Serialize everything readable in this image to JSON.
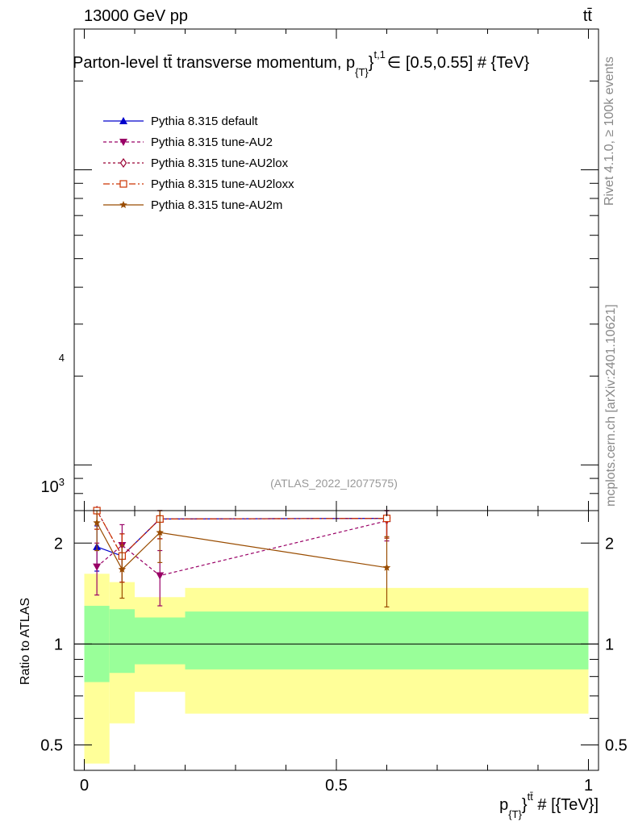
{
  "header": {
    "energy_label": "13000 GeV pp",
    "process_label": "tt̄"
  },
  "side_labels": {
    "rivet": "Rivet 4.1.0, ≥ 100k events",
    "mcplots": "mcplots.cern.ch [arXiv:2401.10621]"
  },
  "chart_data": {
    "type": "line",
    "title": "Parton-level tt̄ transverse momentum, p_{T}^{t,1} ∈ [0.5,0.55] # {TeV}",
    "title_parts": {
      "main": "Parton-level tt̄ transverse momentum, p",
      "sub": "{T}",
      "sup": "}",
      "sup2": "t,1",
      "tail": "∈ [0.5,0.55] # {TeV}"
    },
    "analysis_label": "(ATLAS_2022_I2077575)",
    "main_panel": {
      "yscale": "log",
      "ylim": [
        700,
        30000
      ],
      "ytick_labels": [
        "4",
        "10³"
      ]
    },
    "ratio_panel": {
      "ylabel": "Ratio to ATLAS",
      "yscale": "log",
      "ylim": [
        0.42,
        2.5
      ],
      "yticks": [
        0.5,
        1,
        2
      ],
      "ytick_labels": [
        "0.5",
        "1",
        "2"
      ]
    },
    "xaxis": {
      "xlim": [
        -0.02,
        1.02
      ],
      "xticks": [
        0,
        0.5,
        1
      ],
      "xtick_labels": [
        "0",
        "0.5",
        "1"
      ],
      "xlabel": {
        "main": "p",
        "sub": "{T}",
        "sup": "}",
        "sup2": "tt̄",
        "tail": " # [{TeV}]"
      }
    },
    "bins": [
      [
        0,
        0.05
      ],
      [
        0.05,
        0.1
      ],
      [
        0.1,
        0.2
      ],
      [
        0.2,
        1.0
      ]
    ],
    "reference_bands": {
      "inner": [
        [
          0.77,
          1.3
        ],
        [
          0.82,
          1.27
        ],
        [
          0.87,
          1.2
        ],
        [
          0.84,
          1.25
        ]
      ],
      "outer": [
        [
          0.44,
          1.62
        ],
        [
          0.58,
          1.53
        ],
        [
          0.72,
          1.38
        ],
        [
          0.62,
          1.47
        ]
      ],
      "inner_color": "#99ff99",
      "outer_color": "#ffff99"
    },
    "series": [
      {
        "name": "Pythia 8.315 default",
        "color": "#0000cc",
        "marker": "triangle-up",
        "dash": "",
        "x": [
          0.025,
          0.075,
          0.15,
          0.6
        ],
        "y": [
          1.95,
          1.83,
          2.36,
          2.37
        ],
        "yerr": [
          0.3,
          0.3,
          0.3,
          0.3
        ]
      },
      {
        "name": "Pythia 8.315 tune-AU2",
        "color": "#990066",
        "marker": "triangle-down",
        "dash": "4,3",
        "x": [
          0.025,
          0.075,
          0.15,
          0.6
        ],
        "y": [
          1.7,
          1.97,
          1.6,
          2.33
        ],
        "yerr": [
          0.3,
          0.3,
          0.3,
          0.3
        ]
      },
      {
        "name": "Pythia 8.315 tune-AU2lox",
        "color": "#990033",
        "marker": "diamond-open",
        "dash": "3,3",
        "x": [
          0.025,
          0.075,
          0.15,
          0.6
        ],
        "y": [
          2.5,
          1.83,
          2.36,
          2.37
        ],
        "yerr": [
          0.3,
          0.3,
          0.3,
          0.3
        ]
      },
      {
        "name": "Pythia 8.315 tune-AU2loxx",
        "color": "#cc3300",
        "marker": "square-open",
        "dash": "8,3,2,3",
        "x": [
          0.025,
          0.075,
          0.15,
          0.6
        ],
        "y": [
          2.5,
          1.83,
          2.36,
          2.37
        ],
        "yerr": [
          0.3,
          0.3,
          0.3,
          0.3
        ]
      },
      {
        "name": "Pythia 8.315 tune-AU2m",
        "color": "#994c00",
        "marker": "star",
        "dash": "",
        "x": [
          0.025,
          0.075,
          0.15,
          0.6
        ],
        "y": [
          2.3,
          1.67,
          2.15,
          1.69
        ],
        "yerr": [
          0.4,
          0.3,
          0.4,
          0.4
        ]
      }
    ]
  }
}
